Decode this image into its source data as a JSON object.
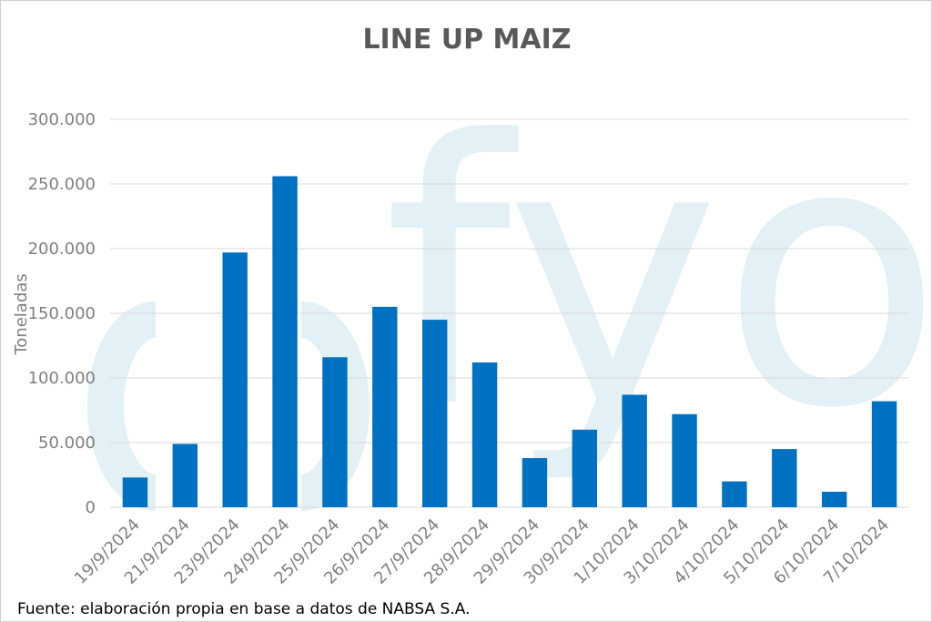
{
  "chart_data": {
    "type": "bar",
    "title": "LINE UP MAIZ",
    "ylabel": "Toneladas",
    "xlabel": "",
    "ylim": [
      0,
      300000
    ],
    "yticks": [
      0,
      50000,
      100000,
      150000,
      200000,
      250000,
      300000
    ],
    "ytick_labels": [
      "0",
      "50.000",
      "100.000",
      "150.000",
      "200.000",
      "250.000",
      "300.000"
    ],
    "grid": true,
    "bar_color": "#0070c0",
    "categories": [
      "19/9/2024",
      "21/9/2024",
      "23/9/2024",
      "24/9/2024",
      "25/9/2024",
      "26/9/2024",
      "27/9/2024",
      "28/9/2024",
      "29/9/2024",
      "30/9/2024",
      "1/10/2024",
      "3/10/2024",
      "4/10/2024",
      "5/10/2024",
      "6/10/2024",
      "7/10/2024"
    ],
    "values": [
      23000,
      49000,
      197000,
      256000,
      116000,
      155000,
      145000,
      112000,
      38000,
      60000,
      87000,
      72000,
      20000,
      45000,
      12000,
      82000
    ]
  },
  "source_note": "Fuente: elaboración propia en base a datos de NABSA S.A.",
  "watermark": "fyo"
}
